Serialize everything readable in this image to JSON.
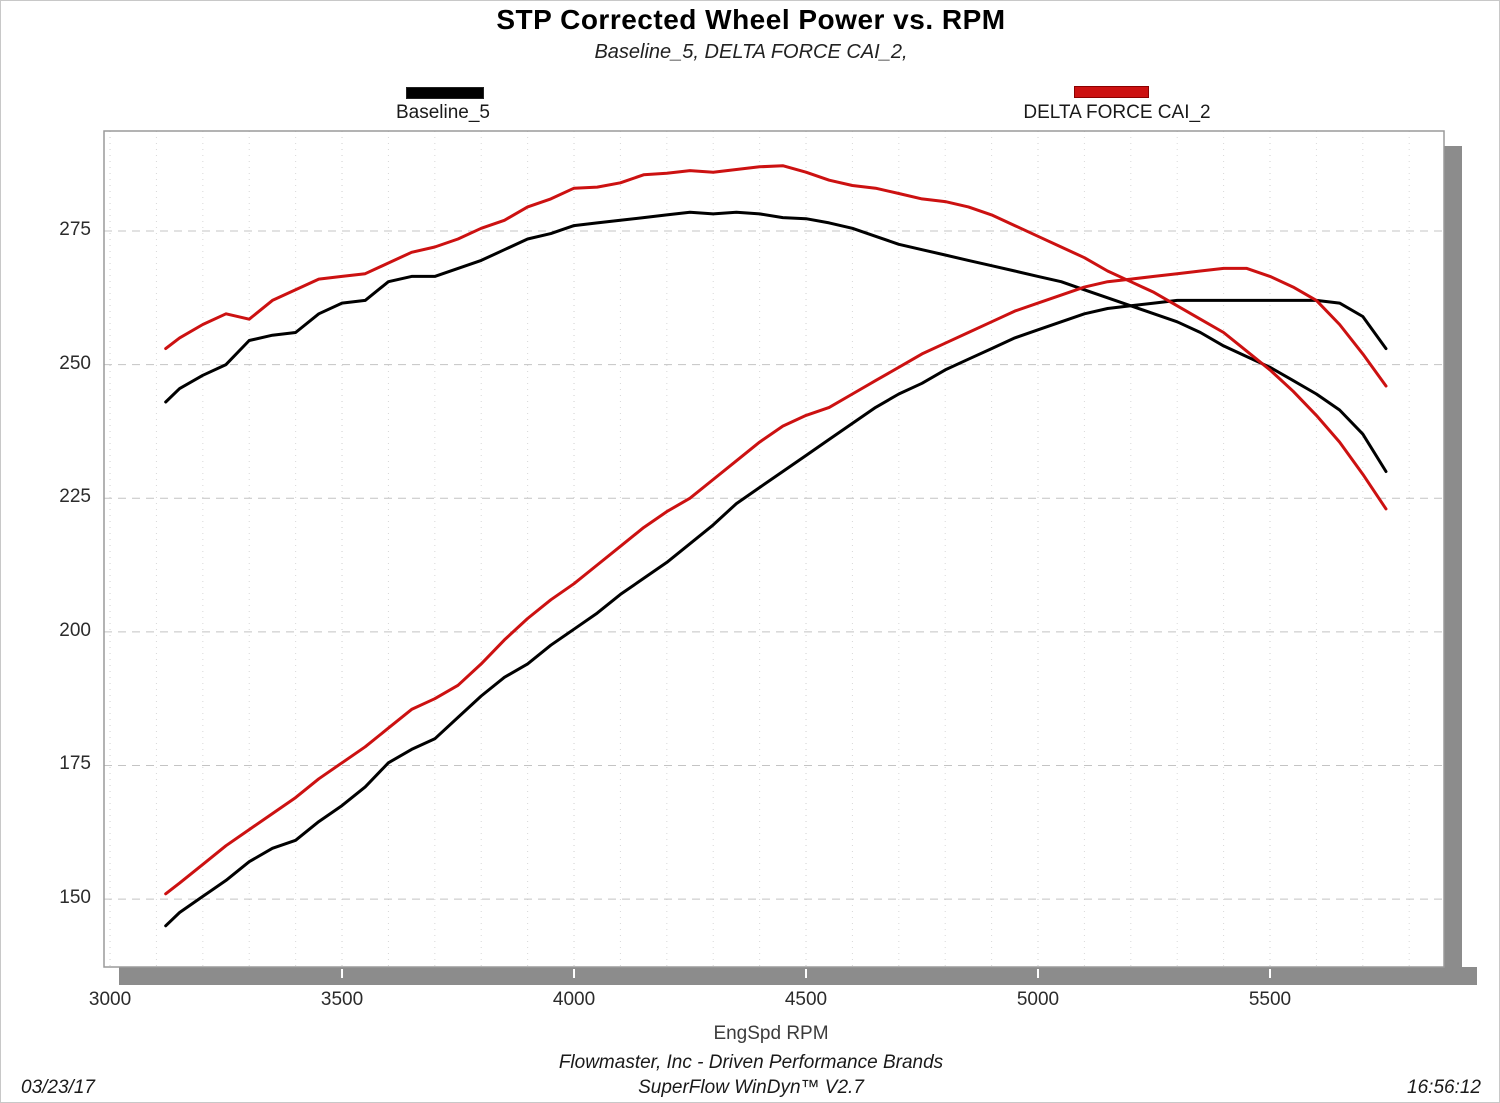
{
  "header": {
    "title": "STP Corrected Wheel Power vs. RPM",
    "subtitle": "Baseline_5, DELTA FORCE CAI_2,"
  },
  "legend": [
    {
      "label": "Baseline_5",
      "color": "#000000"
    },
    {
      "label": "DELTA FORCE CAI_2",
      "color": "#cc1111"
    }
  ],
  "x_axis_title": "EngSpd RPM",
  "footer": {
    "brand_line": "Flowmaster, Inc - Driven Performance Brands",
    "software_line": "SuperFlow WinDyn™ V2.7",
    "date": "03/23/17",
    "time": "16:56:12"
  },
  "chart_data": {
    "type": "line",
    "title": "STP Corrected Wheel Power vs. RPM",
    "xlabel": "EngSpd RPM",
    "ylabel": "",
    "grid": {
      "horizontal": "dashed-major-25",
      "vertical": "dotted-minor-100"
    },
    "legend_position": "top",
    "x_axis": {
      "min": 2987,
      "max": 5875,
      "major_ticks": [
        3000,
        3500,
        4000,
        4500,
        5000,
        5500
      ],
      "minor_step": 100
    },
    "y_axis": {
      "min": 137.3,
      "max": 293.7,
      "major_ticks": [
        150,
        175,
        200,
        225,
        250,
        275
      ]
    },
    "series": [
      {
        "name": "Baseline_5",
        "color": "#000000",
        "traces": [
          {
            "id": "baseline_upper_curve",
            "points": [
              [
                3120,
                243.0
              ],
              [
                3150,
                245.5
              ],
              [
                3200,
                248.0
              ],
              [
                3250,
                250.0
              ],
              [
                3300,
                254.5
              ],
              [
                3350,
                255.5
              ],
              [
                3400,
                256.0
              ],
              [
                3450,
                259.5
              ],
              [
                3500,
                261.5
              ],
              [
                3550,
                262.0
              ],
              [
                3600,
                265.5
              ],
              [
                3650,
                266.5
              ],
              [
                3700,
                266.5
              ],
              [
                3750,
                268.0
              ],
              [
                3800,
                269.5
              ],
              [
                3850,
                271.5
              ],
              [
                3900,
                273.5
              ],
              [
                3950,
                274.5
              ],
              [
                4000,
                276.0
              ],
              [
                4050,
                276.5
              ],
              [
                4100,
                277.0
              ],
              [
                4150,
                277.5
              ],
              [
                4200,
                278.0
              ],
              [
                4250,
                278.5
              ],
              [
                4300,
                278.2
              ],
              [
                4350,
                278.5
              ],
              [
                4400,
                278.2
              ],
              [
                4450,
                277.5
              ],
              [
                4500,
                277.3
              ],
              [
                4550,
                276.5
              ],
              [
                4600,
                275.5
              ],
              [
                4650,
                274.0
              ],
              [
                4700,
                272.5
              ],
              [
                4750,
                271.5
              ],
              [
                4800,
                270.5
              ],
              [
                4850,
                269.5
              ],
              [
                4900,
                268.5
              ],
              [
                4950,
                267.5
              ],
              [
                5000,
                266.5
              ],
              [
                5050,
                265.5
              ],
              [
                5100,
                264.0
              ],
              [
                5150,
                262.5
              ],
              [
                5200,
                261.0
              ],
              [
                5250,
                259.5
              ],
              [
                5300,
                258.0
              ],
              [
                5350,
                256.0
              ],
              [
                5400,
                253.5
              ],
              [
                5450,
                251.5
              ],
              [
                5500,
                249.5
              ],
              [
                5550,
                247.0
              ],
              [
                5600,
                244.5
              ],
              [
                5650,
                241.5
              ],
              [
                5700,
                237.0
              ],
              [
                5750,
                230.0
              ]
            ]
          },
          {
            "id": "baseline_lower_curve",
            "points": [
              [
                3120,
                145.0
              ],
              [
                3150,
                147.5
              ],
              [
                3200,
                150.5
              ],
              [
                3250,
                153.5
              ],
              [
                3300,
                157.0
              ],
              [
                3350,
                159.5
              ],
              [
                3400,
                161.0
              ],
              [
                3450,
                164.5
              ],
              [
                3500,
                167.5
              ],
              [
                3550,
                171.0
              ],
              [
                3600,
                175.5
              ],
              [
                3650,
                178.0
              ],
              [
                3700,
                180.0
              ],
              [
                3750,
                184.0
              ],
              [
                3800,
                188.0
              ],
              [
                3850,
                191.5
              ],
              [
                3900,
                194.0
              ],
              [
                3950,
                197.5
              ],
              [
                4000,
                200.5
              ],
              [
                4050,
                203.5
              ],
              [
                4100,
                207.0
              ],
              [
                4150,
                210.0
              ],
              [
                4200,
                213.0
              ],
              [
                4250,
                216.5
              ],
              [
                4300,
                220.0
              ],
              [
                4350,
                224.0
              ],
              [
                4400,
                227.0
              ],
              [
                4450,
                230.0
              ],
              [
                4500,
                233.0
              ],
              [
                4550,
                236.0
              ],
              [
                4600,
                239.0
              ],
              [
                4650,
                242.0
              ],
              [
                4700,
                244.5
              ],
              [
                4750,
                246.5
              ],
              [
                4800,
                249.0
              ],
              [
                4850,
                251.0
              ],
              [
                4900,
                253.0
              ],
              [
                4950,
                255.0
              ],
              [
                5000,
                256.5
              ],
              [
                5050,
                258.0
              ],
              [
                5100,
                259.5
              ],
              [
                5150,
                260.5
              ],
              [
                5200,
                261.0
              ],
              [
                5250,
                261.5
              ],
              [
                5300,
                262.0
              ],
              [
                5350,
                262.0
              ],
              [
                5400,
                262.0
              ],
              [
                5450,
                262.0
              ],
              [
                5500,
                262.0
              ],
              [
                5550,
                262.0
              ],
              [
                5600,
                262.0
              ],
              [
                5650,
                261.5
              ],
              [
                5700,
                259.0
              ],
              [
                5750,
                253.0
              ]
            ]
          }
        ]
      },
      {
        "name": "DELTA FORCE CAI_2",
        "color": "#cc1111",
        "traces": [
          {
            "id": "delta_upper_curve",
            "points": [
              [
                3120,
                253.0
              ],
              [
                3150,
                255.0
              ],
              [
                3200,
                257.5
              ],
              [
                3250,
                259.5
              ],
              [
                3300,
                258.5
              ],
              [
                3350,
                262.0
              ],
              [
                3400,
                264.0
              ],
              [
                3450,
                266.0
              ],
              [
                3500,
                266.5
              ],
              [
                3550,
                267.0
              ],
              [
                3600,
                269.0
              ],
              [
                3650,
                271.0
              ],
              [
                3700,
                272.0
              ],
              [
                3750,
                273.5
              ],
              [
                3800,
                275.5
              ],
              [
                3850,
                277.0
              ],
              [
                3900,
                279.5
              ],
              [
                3950,
                281.0
              ],
              [
                4000,
                283.0
              ],
              [
                4050,
                283.2
              ],
              [
                4100,
                284.0
              ],
              [
                4150,
                285.5
              ],
              [
                4200,
                285.8
              ],
              [
                4250,
                286.3
              ],
              [
                4300,
                286.0
              ],
              [
                4350,
                286.5
              ],
              [
                4400,
                287.0
              ],
              [
                4450,
                287.2
              ],
              [
                4500,
                286.0
              ],
              [
                4550,
                284.5
              ],
              [
                4600,
                283.5
              ],
              [
                4650,
                283.0
              ],
              [
                4700,
                282.0
              ],
              [
                4750,
                281.0
              ],
              [
                4800,
                280.5
              ],
              [
                4850,
                279.5
              ],
              [
                4900,
                278.0
              ],
              [
                4950,
                276.0
              ],
              [
                5000,
                274.0
              ],
              [
                5050,
                272.0
              ],
              [
                5100,
                270.0
              ],
              [
                5150,
                267.5
              ],
              [
                5200,
                265.5
              ],
              [
                5250,
                263.5
              ],
              [
                5300,
                261.0
              ],
              [
                5350,
                258.5
              ],
              [
                5400,
                256.0
              ],
              [
                5450,
                252.5
              ],
              [
                5500,
                249.0
              ],
              [
                5550,
                245.0
              ],
              [
                5600,
                240.5
              ],
              [
                5650,
                235.5
              ],
              [
                5700,
                229.5
              ],
              [
                5750,
                223.0
              ]
            ]
          },
          {
            "id": "delta_lower_curve",
            "points": [
              [
                3120,
                151.0
              ],
              [
                3150,
                153.0
              ],
              [
                3200,
                156.5
              ],
              [
                3250,
                160.0
              ],
              [
                3300,
                163.0
              ],
              [
                3350,
                166.0
              ],
              [
                3400,
                169.0
              ],
              [
                3450,
                172.5
              ],
              [
                3500,
                175.5
              ],
              [
                3550,
                178.5
              ],
              [
                3600,
                182.0
              ],
              [
                3650,
                185.5
              ],
              [
                3700,
                187.5
              ],
              [
                3750,
                190.0
              ],
              [
                3800,
                194.0
              ],
              [
                3850,
                198.5
              ],
              [
                3900,
                202.5
              ],
              [
                3950,
                206.0
              ],
              [
                4000,
                209.0
              ],
              [
                4050,
                212.5
              ],
              [
                4100,
                216.0
              ],
              [
                4150,
                219.5
              ],
              [
                4200,
                222.5
              ],
              [
                4250,
                225.0
              ],
              [
                4300,
                228.5
              ],
              [
                4350,
                232.0
              ],
              [
                4400,
                235.5
              ],
              [
                4450,
                238.5
              ],
              [
                4500,
                240.5
              ],
              [
                4550,
                242.0
              ],
              [
                4600,
                244.5
              ],
              [
                4650,
                247.0
              ],
              [
                4700,
                249.5
              ],
              [
                4750,
                252.0
              ],
              [
                4800,
                254.0
              ],
              [
                4850,
                256.0
              ],
              [
                4900,
                258.0
              ],
              [
                4950,
                260.0
              ],
              [
                5000,
                261.5
              ],
              [
                5050,
                263.0
              ],
              [
                5100,
                264.5
              ],
              [
                5150,
                265.5
              ],
              [
                5200,
                266.0
              ],
              [
                5250,
                266.5
              ],
              [
                5300,
                267.0
              ],
              [
                5350,
                267.5
              ],
              [
                5400,
                268.0
              ],
              [
                5450,
                268.0
              ],
              [
                5500,
                266.5
              ],
              [
                5550,
                264.5
              ],
              [
                5600,
                262.0
              ],
              [
                5650,
                257.5
              ],
              [
                5700,
                252.0
              ],
              [
                5750,
                246.0
              ]
            ]
          }
        ]
      }
    ]
  },
  "plot_style": {
    "frame_color": "#9a9a9a",
    "shadow_color": "#8c8c8c",
    "h_grid_color": "#c4c4c4",
    "v_grid_color": "#d8d8d8",
    "background": "#ffffff",
    "line_width": 3
  }
}
